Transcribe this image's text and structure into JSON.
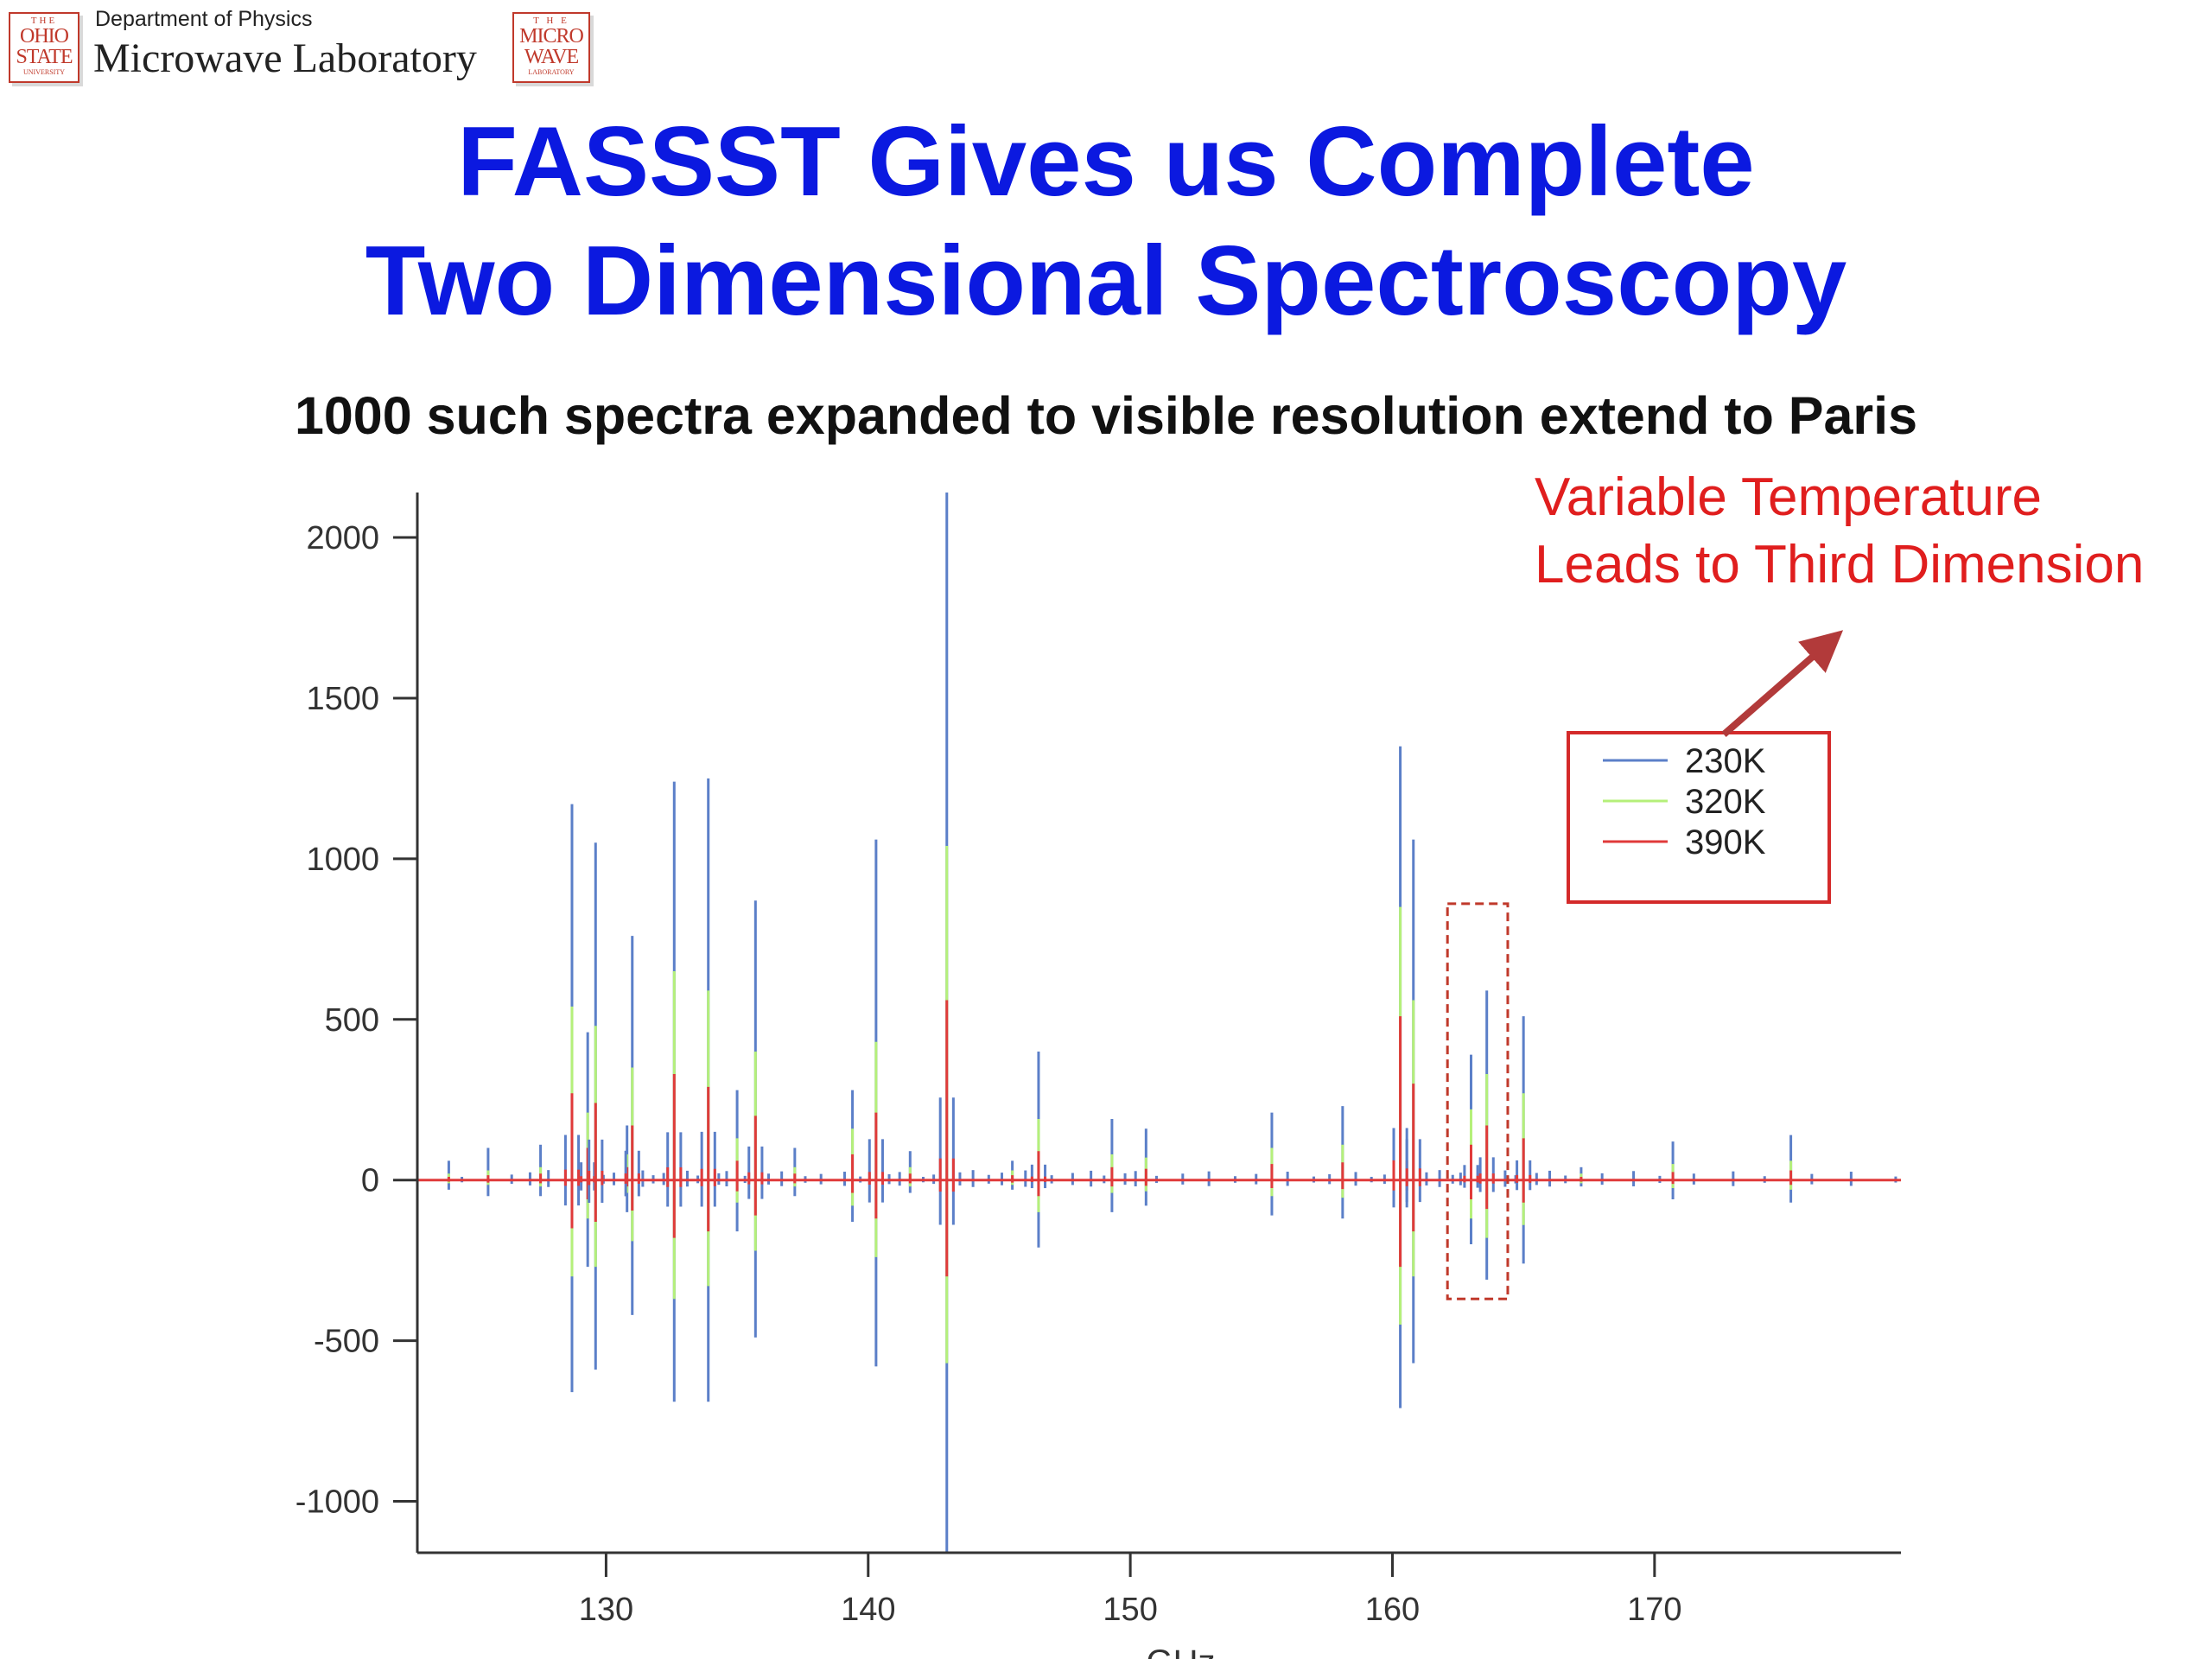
{
  "header": {
    "logo_left": [
      "THE",
      "OHIO",
      "STATE",
      "UNIVERSITY"
    ],
    "department": "Department of Physics",
    "lab": "Microwave Laboratory",
    "logo_right": [
      "T H E",
      "MICRO",
      "WAVE",
      "LABORATORY"
    ]
  },
  "title_lines": [
    "FASSST Gives us Complete",
    "Two Dimensional Spectroscopy"
  ],
  "subtitle": "1000 such spectra expanded to visible resolution extend to Paris",
  "annotation_lines": [
    "Variable Temperature",
    "Leads to Third Dimension"
  ],
  "colors": {
    "title": "#0b19e0",
    "annotation": "#e01e1e",
    "s230": "#5b7fc8",
    "s320": "#b5f07a",
    "s390": "#e03a3a"
  },
  "chart_data": {
    "type": "line",
    "xlabel": "GHz",
    "ylabel": "",
    "xlim": [
      122.8,
      179.4
    ],
    "ylim": [
      -1160,
      2140
    ],
    "xticks": [
      130,
      140,
      150,
      160,
      170
    ],
    "yticks": [
      -1000,
      -500,
      0,
      500,
      1000,
      1500,
      2000
    ],
    "legend_position": "upper-right",
    "series_names": [
      "230K",
      "320K",
      "390K"
    ],
    "lines": [
      {
        "x": 124.0,
        "y": [
          60,
          -30
        ],
        "g": [
          20,
          -10
        ],
        "r": [
          10,
          -5
        ]
      },
      {
        "x": 125.5,
        "y": [
          100,
          -50
        ],
        "g": [
          30,
          -15
        ],
        "r": [
          15,
          -8
        ]
      },
      {
        "x": 127.5,
        "y": [
          110,
          -50
        ],
        "g": [
          40,
          -20
        ],
        "r": [
          20,
          -10
        ]
      },
      {
        "x": 128.7,
        "y": [
          1170,
          -660
        ],
        "g": [
          540,
          -300
        ],
        "r": [
          270,
          -150
        ]
      },
      {
        "x": 129.3,
        "y": [
          460,
          -270
        ],
        "g": [
          210,
          -120
        ],
        "r": [
          100,
          -60
        ]
      },
      {
        "x": 129.6,
        "y": [
          1050,
          -590
        ],
        "g": [
          480,
          -270
        ],
        "r": [
          240,
          -130
        ]
      },
      {
        "x": 130.8,
        "y": [
          170,
          -100
        ],
        "g": [
          80,
          -40
        ],
        "r": [
          40,
          -20
        ]
      },
      {
        "x": 131.0,
        "y": [
          760,
          -420
        ],
        "g": [
          350,
          -190
        ],
        "r": [
          170,
          -95
        ]
      },
      {
        "x": 132.6,
        "y": [
          1240,
          -690
        ],
        "g": [
          650,
          -370
        ],
        "r": [
          330,
          -180
        ]
      },
      {
        "x": 133.9,
        "y": [
          1250,
          -690
        ],
        "g": [
          590,
          -330
        ],
        "r": [
          290,
          -160
        ]
      },
      {
        "x": 135.0,
        "y": [
          280,
          -160
        ],
        "g": [
          130,
          -70
        ],
        "r": [
          60,
          -35
        ]
      },
      {
        "x": 135.7,
        "y": [
          870,
          -490
        ],
        "g": [
          400,
          -220
        ],
        "r": [
          200,
          -110
        ]
      },
      {
        "x": 137.2,
        "y": [
          100,
          -50
        ],
        "g": [
          40,
          -20
        ],
        "r": [
          20,
          -10
        ]
      },
      {
        "x": 139.4,
        "y": [
          280,
          -130
        ],
        "g": [
          160,
          -80
        ],
        "r": [
          80,
          -40
        ]
      },
      {
        "x": 140.3,
        "y": [
          1060,
          -580
        ],
        "g": [
          430,
          -240
        ],
        "r": [
          210,
          -120
        ]
      },
      {
        "x": 141.6,
        "y": [
          90,
          -40
        ],
        "g": [
          40,
          -20
        ],
        "r": [
          20,
          -10
        ]
      },
      {
        "x": 143.0,
        "y": [
          2140,
          -1160
        ],
        "g": [
          1040,
          -570
        ],
        "r": [
          560,
          -300
        ]
      },
      {
        "x": 145.5,
        "y": [
          60,
          -30
        ],
        "g": [
          30,
          -15
        ],
        "r": [
          15,
          -8
        ]
      },
      {
        "x": 146.5,
        "y": [
          400,
          -210
        ],
        "g": [
          190,
          -100
        ],
        "r": [
          90,
          -50
        ]
      },
      {
        "x": 149.3,
        "y": [
          190,
          -100
        ],
        "g": [
          80,
          -40
        ],
        "r": [
          40,
          -20
        ]
      },
      {
        "x": 150.6,
        "y": [
          160,
          -80
        ],
        "g": [
          70,
          -35
        ],
        "r": [
          35,
          -18
        ]
      },
      {
        "x": 155.4,
        "y": [
          210,
          -110
        ],
        "g": [
          100,
          -50
        ],
        "r": [
          50,
          -25
        ]
      },
      {
        "x": 158.1,
        "y": [
          230,
          -120
        ],
        "g": [
          110,
          -55
        ],
        "r": [
          55,
          -28
        ]
      },
      {
        "x": 160.3,
        "y": [
          1350,
          -710
        ],
        "g": [
          850,
          -450
        ],
        "r": [
          510,
          -270
        ]
      },
      {
        "x": 160.8,
        "y": [
          1060,
          -570
        ],
        "g": [
          560,
          -300
        ],
        "r": [
          300,
          -160
        ]
      },
      {
        "x": 163.0,
        "y": [
          390,
          -200
        ],
        "g": [
          220,
          -120
        ],
        "r": [
          110,
          -60
        ]
      },
      {
        "x": 163.6,
        "y": [
          590,
          -310
        ],
        "g": [
          330,
          -180
        ],
        "r": [
          170,
          -90
        ]
      },
      {
        "x": 165.0,
        "y": [
          510,
          -260
        ],
        "g": [
          270,
          -140
        ],
        "r": [
          130,
          -70
        ]
      },
      {
        "x": 167.2,
        "y": [
          40,
          -20
        ],
        "g": [
          20,
          -10
        ],
        "r": [
          10,
          -5
        ]
      },
      {
        "x": 170.7,
        "y": [
          120,
          -60
        ],
        "g": [
          50,
          -25
        ],
        "r": [
          25,
          -12
        ]
      },
      {
        "x": 175.2,
        "y": [
          140,
          -70
        ],
        "g": [
          60,
          -30
        ],
        "r": [
          30,
          -15
        ]
      }
    ],
    "small_lines": [
      124.5,
      126.4,
      127.1,
      127.8,
      129.9,
      130.3,
      131.4,
      131.8,
      132.2,
      133.1,
      133.5,
      134.3,
      134.6,
      135.3,
      136.2,
      136.7,
      137.6,
      138.2,
      139.1,
      139.7,
      140.8,
      141.2,
      142.1,
      142.5,
      143.5,
      144.0,
      144.6,
      145.1,
      146.0,
      147.0,
      147.8,
      148.5,
      149.0,
      149.8,
      150.2,
      151.0,
      152.0,
      153.0,
      154.0,
      154.8,
      156.0,
      157.0,
      157.6,
      158.6,
      159.2,
      159.7,
      161.3,
      161.8,
      162.3,
      162.6,
      164.3,
      164.7,
      165.5,
      166.0,
      166.6,
      168.0,
      169.2,
      170.2,
      171.5,
      173.0,
      174.2,
      176.0,
      177.5,
      179.2
    ]
  }
}
